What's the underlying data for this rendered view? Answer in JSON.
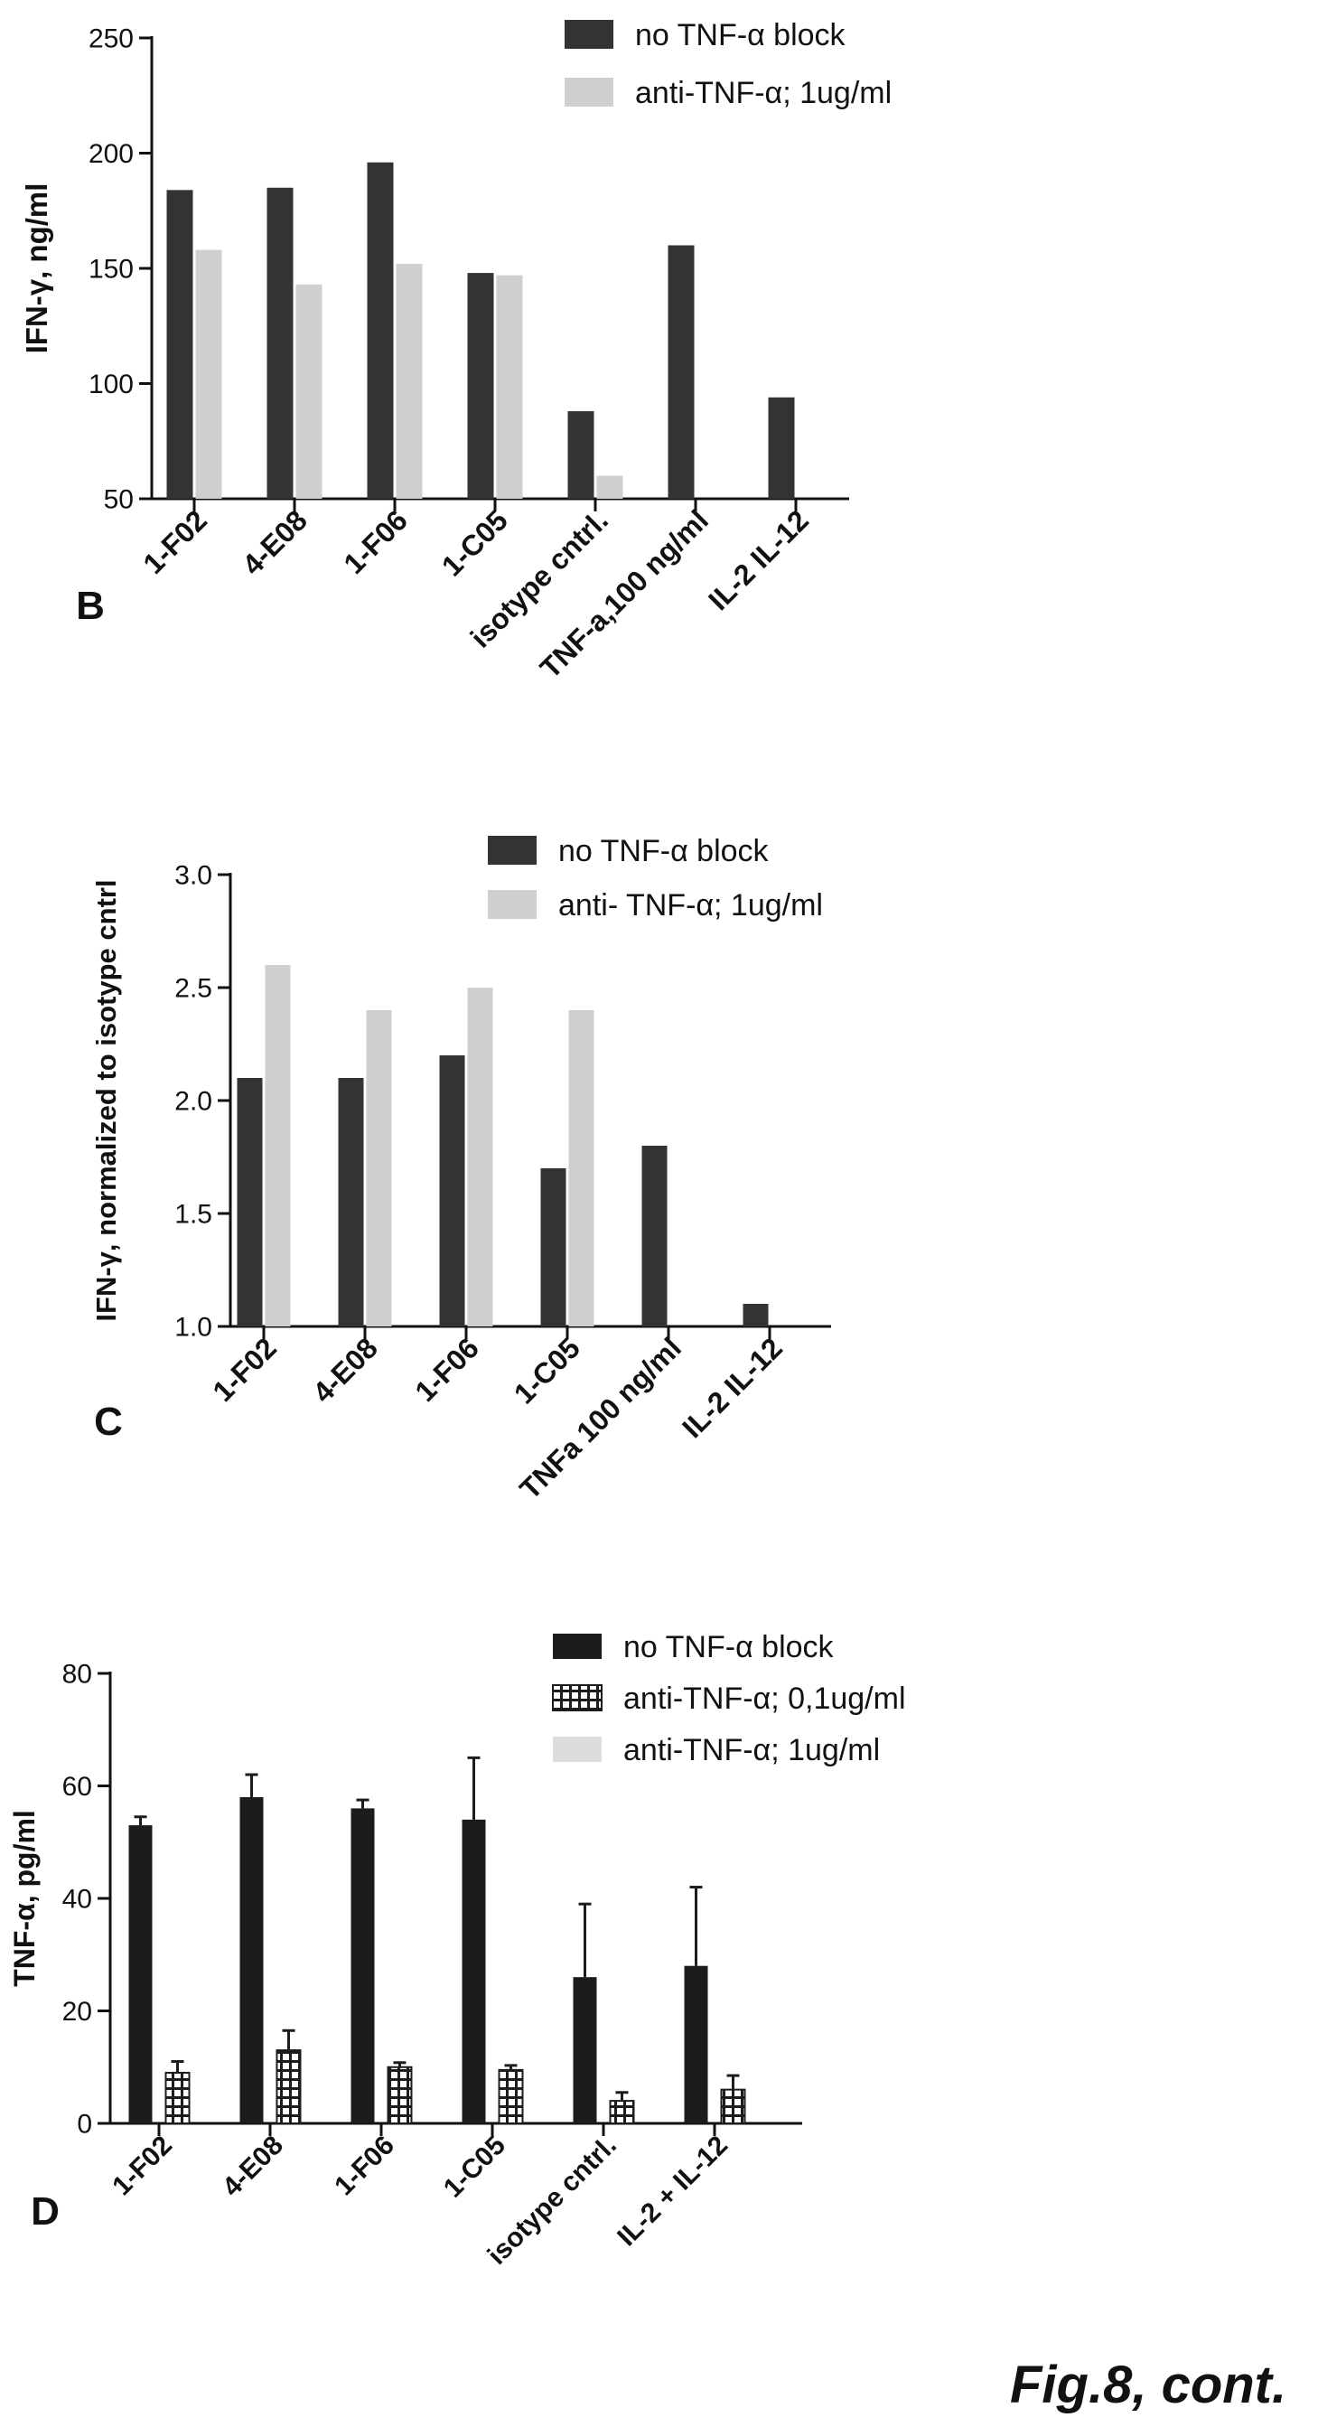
{
  "figure_caption": "Fig.8, cont.",
  "chart_data": [
    {
      "type": "bar",
      "panel_label": "B",
      "title": "",
      "xlabel": "",
      "ylabel": "IFN-γ, ng/ml",
      "ylim": [
        50,
        250
      ],
      "yticks": [
        50,
        100,
        150,
        200,
        250
      ],
      "grid": false,
      "legend_position": "top-right",
      "categories": [
        "1-F02",
        "4-E08",
        "1-F06",
        "1-C05",
        "isotype cntrl.",
        "TNF-a,100 ng/ml",
        "IL-2 IL-12"
      ],
      "series": [
        {
          "name": "no TNF-α block",
          "color": "#333333",
          "values": [
            184,
            185,
            196,
            148,
            88,
            160,
            94
          ]
        },
        {
          "name": "anti-TNF-α; 1ug/ml",
          "color": "#cfcfcf",
          "values": [
            158,
            143,
            152,
            147,
            60,
            null,
            null
          ]
        }
      ]
    },
    {
      "type": "bar",
      "panel_label": "C",
      "title": "",
      "xlabel": "",
      "ylabel": "IFN-γ, normalized to isotype cntrl",
      "ylim": [
        1.0,
        3.0
      ],
      "yticks": [
        1.0,
        1.5,
        2.0,
        2.5,
        3.0
      ],
      "grid": false,
      "legend_position": "top-right",
      "categories": [
        "1-F02",
        "4-E08",
        "1-F06",
        "1-C05",
        "TNFa 100 ng/ml",
        "IL-2 IL-12"
      ],
      "series": [
        {
          "name": "no TNF-α block",
          "color": "#333333",
          "values": [
            2.1,
            2.1,
            2.2,
            1.7,
            1.8,
            1.1
          ]
        },
        {
          "name": "anti- TNF-α; 1ug/ml",
          "color": "#cfcfcf",
          "values": [
            2.6,
            2.4,
            2.5,
            2.4,
            null,
            null
          ]
        }
      ]
    },
    {
      "type": "bar",
      "panel_label": "D",
      "title": "",
      "xlabel": "",
      "ylabel": "TNF-α, pg/ml",
      "ylim": [
        0,
        80
      ],
      "yticks": [
        0,
        20,
        40,
        60,
        80
      ],
      "grid": false,
      "legend_position": "top-right",
      "error_bars": true,
      "categories": [
        "1-F02",
        "4-E08",
        "1-F06",
        "1-C05",
        "isotype cntrl.",
        "IL-2 + IL-12"
      ],
      "series": [
        {
          "name": "no TNF-α block",
          "color": "#1c1c1c",
          "style": "solid",
          "values": [
            53,
            58,
            56,
            54,
            26,
            28
          ],
          "errors": [
            1.5,
            4,
            1.5,
            11,
            13,
            14
          ]
        },
        {
          "name": "anti-TNF-α; 0,1ug/ml",
          "color": "#ffffff",
          "style": "hatched",
          "values": [
            9,
            13,
            10,
            9.5,
            4,
            6
          ],
          "errors": [
            2,
            3.5,
            0.8,
            0.8,
            1.5,
            2.5
          ]
        },
        {
          "name": "anti-TNF-α; 1ug/ml",
          "color": "#dcdcdc",
          "style": "light",
          "values": [
            null,
            null,
            null,
            null,
            null,
            null
          ],
          "errors": [
            null,
            null,
            null,
            null,
            null,
            null
          ]
        }
      ]
    }
  ]
}
